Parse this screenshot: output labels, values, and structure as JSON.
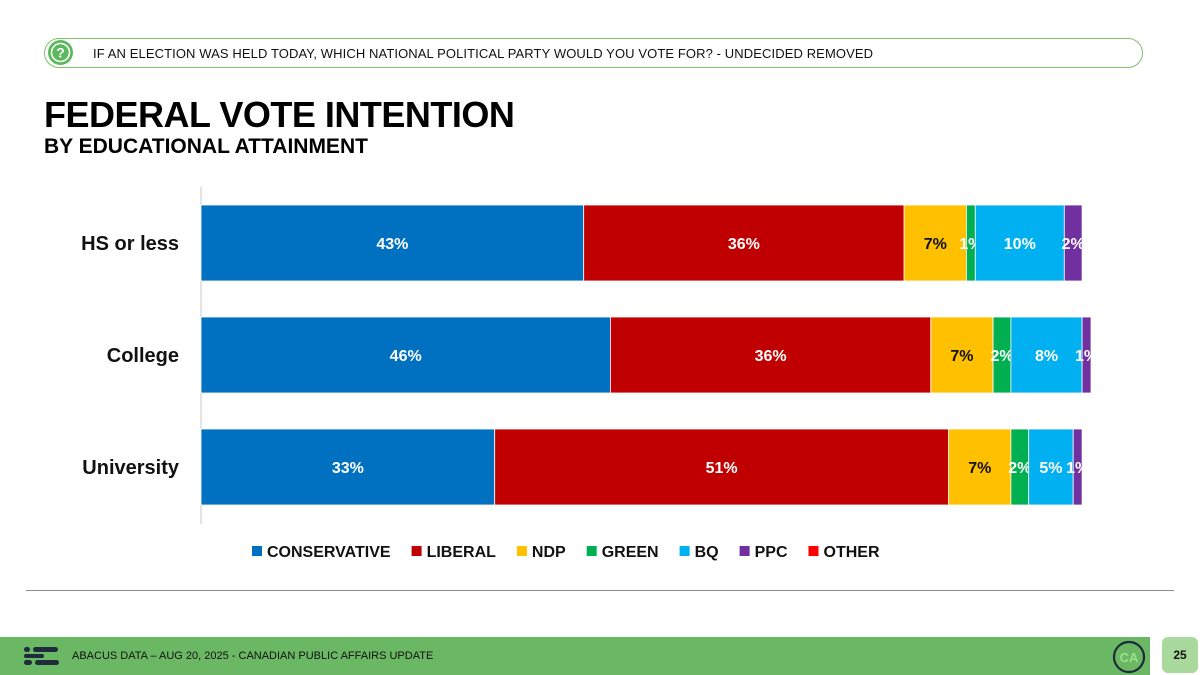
{
  "question": {
    "icon": "question-mark-icon",
    "text": "IF AN ELECTION WAS HELD TODAY, WHICH NATIONAL POLITICAL PARTY WOULD YOU VOTE FOR? - UNDECIDED REMOVED"
  },
  "chart_data": {
    "type": "bar",
    "orientation": "horizontal",
    "stacked": true,
    "title": "FEDERAL VOTE INTENTION",
    "subtitle": "BY EDUCATIONAL ATTAINMENT",
    "categories": [
      "HS or less",
      "College",
      "University"
    ],
    "series": [
      {
        "name": "CONSERVATIVE",
        "color": "#0070c0",
        "values": [
          43,
          46,
          33
        ],
        "labels": [
          "43%",
          "46%",
          "33%"
        ]
      },
      {
        "name": "LIBERAL",
        "color": "#c00000",
        "values": [
          36,
          36,
          51
        ],
        "labels": [
          "36%",
          "36%",
          "51%"
        ]
      },
      {
        "name": "NDP",
        "color": "#ffc000",
        "values": [
          7,
          7,
          7
        ],
        "labels": [
          "7%",
          "7%",
          "7%"
        ]
      },
      {
        "name": "GREEN",
        "color": "#00b050",
        "values": [
          1,
          2,
          2
        ],
        "labels": [
          "1%",
          "2%",
          "2%"
        ]
      },
      {
        "name": "BQ",
        "color": "#00b0f0",
        "values": [
          10,
          8,
          5
        ],
        "labels": [
          "10%",
          "8%",
          "5%"
        ]
      },
      {
        "name": "PPC",
        "color": "#7030a0",
        "values": [
          2,
          1,
          1
        ],
        "labels": [
          "2%",
          "1%",
          "1%"
        ]
      },
      {
        "name": "OTHER",
        "color": "#ff0000",
        "values": [
          0,
          0,
          0
        ],
        "labels": [
          "",
          "",
          ""
        ]
      }
    ],
    "xlim": [
      0,
      100
    ],
    "legend": "bottom",
    "grid": false
  },
  "footer": {
    "logo_icon": "abacus-logo-icon",
    "text": "ABACUS DATA – AUG 20, 2025 - CANADIAN PUBLIC AFFAIRS UPDATE",
    "badge_text": "CA",
    "page_number": "25"
  }
}
